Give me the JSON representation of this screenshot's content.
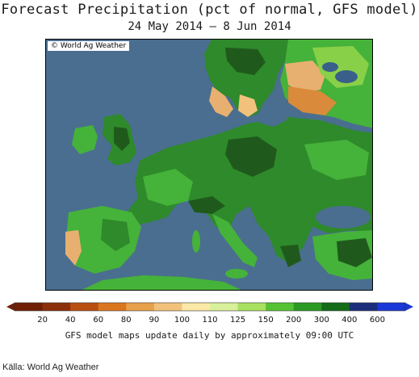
{
  "title": "Forecast Precipitation (pct of normal, GFS model)",
  "subtitle": "24 May 2014 – 8 Jun 2014",
  "copyright": "© World Ag Weather",
  "footnote": "GFS model maps update daily by approximately 09:00 UTC",
  "source": "Källa: World Ag Weather",
  "colors": {
    "ocean": "#4a6e8f",
    "land_dark_green": "#1f5a1c",
    "land_green": "#2e8a2a",
    "land_light_green": "#45b23a",
    "land_lime": "#88d048",
    "land_tan": "#e8b070",
    "land_orange": "#d98a3a",
    "water_body": "#3a5f8a"
  },
  "legend": {
    "unit": "pct of normal",
    "bins": [
      {
        "label": "20",
        "color": "#8b2f0a"
      },
      {
        "label": "40",
        "color": "#b84e12"
      },
      {
        "label": "60",
        "color": "#d9761e"
      },
      {
        "label": "80",
        "color": "#e8a04a"
      },
      {
        "label": "90",
        "color": "#f2c27c"
      },
      {
        "label": "100",
        "color": "#fbe9a8"
      },
      {
        "label": "110",
        "color": "#d8f09a"
      },
      {
        "label": "125",
        "color": "#a8e060"
      },
      {
        "label": "150",
        "color": "#55c234"
      },
      {
        "label": "200",
        "color": "#2a9a24"
      },
      {
        "label": "300",
        "color": "#146b18"
      },
      {
        "label": "400",
        "color": "#1c2d7a"
      },
      {
        "label": "600",
        "color": "#1a38d8"
      }
    ],
    "end_low_color": "#6e1f05",
    "end_high_color": "#1a38d8"
  }
}
